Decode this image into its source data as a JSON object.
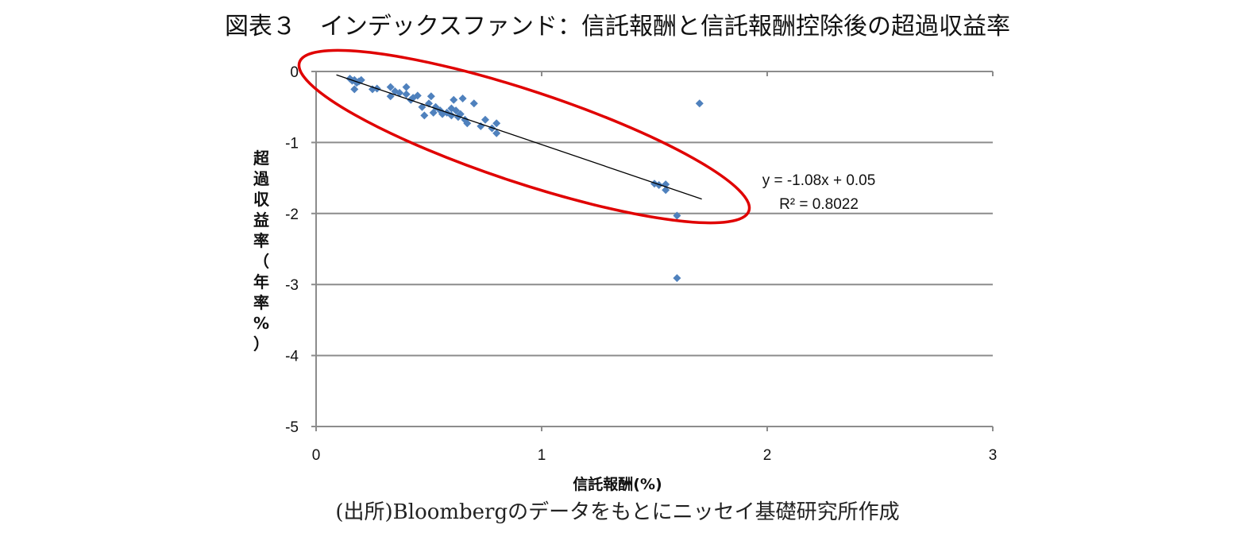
{
  "title": "図表３　インデックスファンド：信託報酬と信託報酬控除後の超過収益率",
  "source": "(出所)Bloombergのデータをもとにニッセイ基礎研究所作成",
  "chart_data": {
    "type": "scatter",
    "title": "図表３　インデックスファンド：信託報酬と信託報酬控除後の超過収益率",
    "xlabel": "信託報酬(%)",
    "ylabel": "超過収益率（年率%）",
    "xlim": [
      0,
      3
    ],
    "ylim": [
      -5,
      0
    ],
    "xticks": [
      "0",
      "1",
      "2",
      "3"
    ],
    "yticks": [
      "0",
      "-1",
      "-2",
      "-3",
      "-4",
      "-5"
    ],
    "grid": "horizontal",
    "legend": "none",
    "marker_color": "#4f81bd",
    "trendline": {
      "equation": "y = -1.08x + 0.05",
      "r_squared": "R² = 0.8022",
      "slope": -1.08,
      "intercept": 0.05,
      "x_range": [
        0.09,
        1.71
      ]
    },
    "annotation": {
      "shape": "ellipse",
      "color": "#e00000",
      "note": "red ellipse highlighting trend cluster"
    },
    "points": [
      [
        0.15,
        -0.1
      ],
      [
        0.16,
        -0.13
      ],
      [
        0.17,
        -0.12
      ],
      [
        0.18,
        -0.16
      ],
      [
        0.2,
        -0.12
      ],
      [
        0.17,
        -0.25
      ],
      [
        0.19,
        -0.14
      ],
      [
        0.25,
        -0.25
      ],
      [
        0.27,
        -0.24
      ],
      [
        0.33,
        -0.22
      ],
      [
        0.33,
        -0.35
      ],
      [
        0.35,
        -0.28
      ],
      [
        0.37,
        -0.3
      ],
      [
        0.4,
        -0.32
      ],
      [
        0.4,
        -0.22
      ],
      [
        0.43,
        -0.37
      ],
      [
        0.45,
        -0.34
      ],
      [
        0.42,
        -0.4
      ],
      [
        0.47,
        -0.5
      ],
      [
        0.48,
        -0.62
      ],
      [
        0.5,
        -0.45
      ],
      [
        0.51,
        -0.35
      ],
      [
        0.52,
        -0.58
      ],
      [
        0.53,
        -0.5
      ],
      [
        0.55,
        -0.55
      ],
      [
        0.56,
        -0.6
      ],
      [
        0.58,
        -0.58
      ],
      [
        0.6,
        -0.62
      ],
      [
        0.6,
        -0.52
      ],
      [
        0.61,
        -0.4
      ],
      [
        0.62,
        -0.55
      ],
      [
        0.63,
        -0.64
      ],
      [
        0.64,
        -0.6
      ],
      [
        0.65,
        -0.38
      ],
      [
        0.66,
        -0.68
      ],
      [
        0.67,
        -0.73
      ],
      [
        0.7,
        -0.45
      ],
      [
        0.73,
        -0.77
      ],
      [
        0.75,
        -0.68
      ],
      [
        0.78,
        -0.8
      ],
      [
        0.8,
        -0.73
      ],
      [
        0.8,
        -0.87
      ],
      [
        1.5,
        -1.58
      ],
      [
        1.52,
        -1.6
      ],
      [
        1.55,
        -1.59
      ],
      [
        1.55,
        -1.67
      ],
      [
        1.6,
        -2.03
      ],
      [
        1.6,
        -2.91
      ],
      [
        1.7,
        -0.45
      ]
    ]
  }
}
